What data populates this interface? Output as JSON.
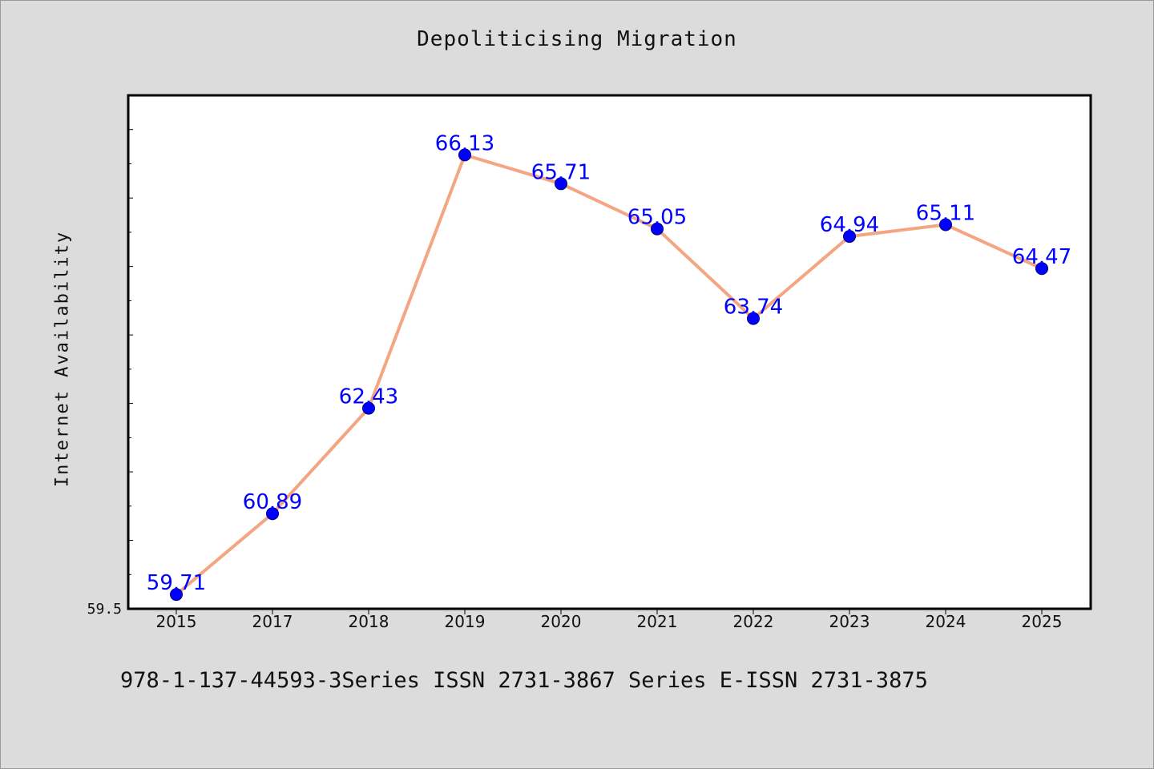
{
  "footer": "978-1-137-44593-3Series ISSN 2731-3867 Series E-ISSN 2731-3875",
  "chart_data": {
    "type": "line",
    "title": "Depoliticising Migration",
    "xlabel": "",
    "ylabel": "Internet Availability",
    "categories": [
      "2015",
      "2017",
      "2018",
      "2019",
      "2020",
      "2021",
      "2022",
      "2023",
      "2024",
      "2025"
    ],
    "series": [
      {
        "values": [
          59.71,
          60.89,
          62.43,
          66.13,
          65.71,
          65.05,
          63.74,
          64.94,
          65.11,
          64.47
        ]
      }
    ],
    "ylim": [
      59.5,
      67.0
    ],
    "y_tick_labels_shown": [
      "59.5"
    ],
    "data_labels": true,
    "grid": false,
    "legend": "none",
    "colors": {
      "line": "#f4a582",
      "marker": "#0000ff",
      "label": "#0000ff",
      "plot_background": "#ffffff",
      "page_background": "#dcdcdc"
    }
  }
}
